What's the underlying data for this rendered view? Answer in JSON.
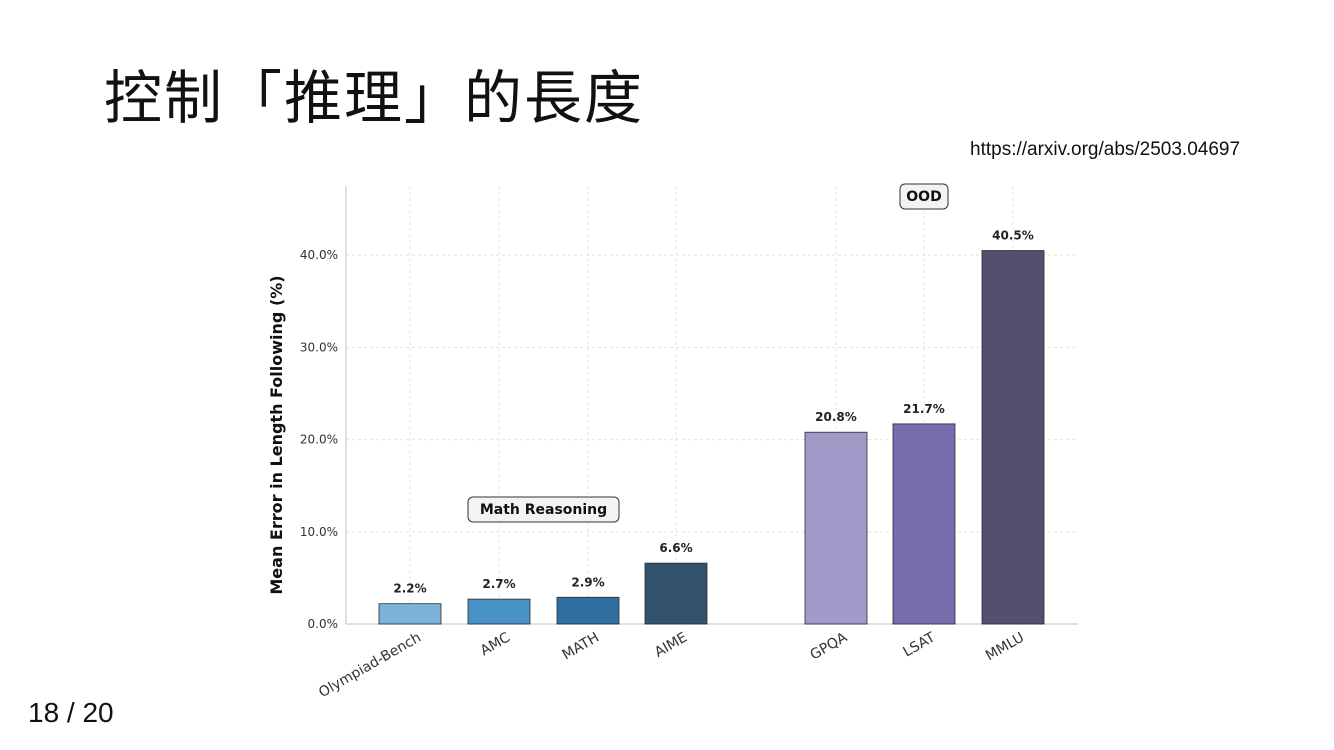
{
  "slide": {
    "title": "控制「推理」的長度",
    "source_url": "https://arxiv.org/abs/2503.04697",
    "page_number": "18 / 20"
  },
  "chart_data": {
    "type": "bar",
    "title": "",
    "xlabel": "",
    "ylabel": "Mean Error in Length Following (%)",
    "ylim": [
      0,
      47.5
    ],
    "yticks": [
      0,
      10,
      20,
      30,
      40
    ],
    "ytick_labels": [
      "0.0%",
      "10.0%",
      "20.0%",
      "30.0%",
      "40.0%"
    ],
    "grid": true,
    "categories": [
      "Olympiad-Bench",
      "AMC",
      "MATH",
      "AIME",
      "GPQA",
      "LSAT",
      "MMLU"
    ],
    "values": [
      2.2,
      2.7,
      2.9,
      6.6,
      20.8,
      21.7,
      40.5
    ],
    "value_labels": [
      "2.2%",
      "2.7%",
      "2.9%",
      "6.6%",
      "20.8%",
      "21.7%",
      "40.5%"
    ],
    "bar_colors": [
      "#7db3d9",
      "#4a93c6",
      "#2f6fa1",
      "#33536c",
      "#a29ac9",
      "#786cae",
      "#564e6e"
    ],
    "groups": [
      {
        "label": "Math Reasoning",
        "members": [
          0,
          1,
          2,
          3
        ]
      },
      {
        "label": "OOD",
        "members": [
          4,
          5,
          6
        ]
      }
    ]
  }
}
